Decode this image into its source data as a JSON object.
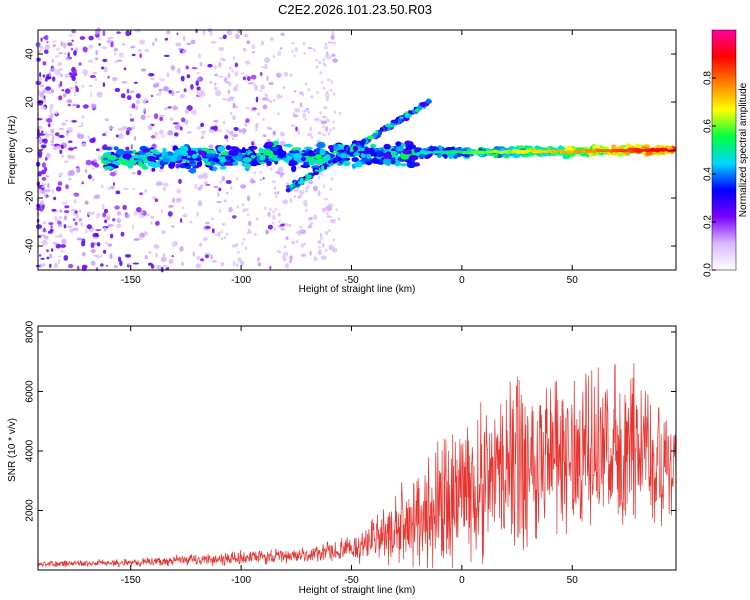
{
  "title": "C2E2.2026.101.23.50.R03",
  "colors": {
    "snr_line": "#e8332f",
    "axis": "#000000"
  },
  "chart_data": [
    {
      "type": "heatmap",
      "name": "spectrogram",
      "xlabel": "Height of straight line (km)",
      "ylabel": "Frequency (Hz)",
      "xlim": [
        -192,
        97
      ],
      "ylim": [
        -50,
        50
      ],
      "x_ticks": [
        -150,
        -100,
        -50,
        0,
        50
      ],
      "y_ticks": [
        -40,
        -20,
        0,
        20,
        40
      ],
      "colorbar": {
        "label": "Normalized spectral amplitude",
        "range": [
          0,
          1
        ],
        "ticks": [
          0.0,
          0.2,
          0.4,
          0.6,
          0.8
        ],
        "tick_labels": [
          "0.0",
          "0.2",
          "0.4",
          "0.6",
          "0.8"
        ],
        "colormap": [
          "#ffffff",
          "#d9b8ff",
          "#7a00ff",
          "#0000ff",
          "#00d8ff",
          "#00ff40",
          "#ffff00",
          "#ff8000",
          "#ff0000",
          "#ff00a0"
        ]
      },
      "features": [
        {
          "name": "scattered noise",
          "x": [
            -192,
            -60
          ],
          "freq_spread": 50,
          "amplitude": 0.2
        },
        {
          "name": "main echo trail",
          "x": [
            -160,
            95
          ],
          "freq": [
            -5,
            0
          ],
          "amplitude_range": [
            0.3,
            0.9
          ]
        },
        {
          "name": "descending branch",
          "x": [
            -80,
            -15
          ],
          "freq": [
            -17,
            20
          ]
        }
      ]
    },
    {
      "type": "line",
      "name": "snr",
      "xlabel": "Height of straight line (km)",
      "ylabel": "SNR (10 * v/v)",
      "xlim": [
        -192,
        97
      ],
      "ylim": [
        0,
        8200
      ],
      "x_ticks": [
        -150,
        -100,
        -50,
        0,
        50
      ],
      "y_ticks": [
        2000,
        4000,
        6000,
        8000
      ],
      "envelope": [
        {
          "x": -192,
          "mean": 200,
          "spread": 120
        },
        {
          "x": -150,
          "mean": 250,
          "spread": 150
        },
        {
          "x": -100,
          "mean": 400,
          "spread": 300
        },
        {
          "x": -70,
          "mean": 500,
          "spread": 300
        },
        {
          "x": -50,
          "mean": 700,
          "spread": 500
        },
        {
          "x": -30,
          "mean": 1300,
          "spread": 1400
        },
        {
          "x": -10,
          "mean": 2200,
          "spread": 2600
        },
        {
          "x": 10,
          "mean": 3000,
          "spread": 3200
        },
        {
          "x": 30,
          "mean": 3800,
          "spread": 3500
        },
        {
          "x": 50,
          "mean": 3900,
          "spread": 3200
        },
        {
          "x": 75,
          "mean": 4000,
          "spread": 3000
        },
        {
          "x": 97,
          "mean": 3900,
          "spread": 2800
        }
      ]
    }
  ]
}
